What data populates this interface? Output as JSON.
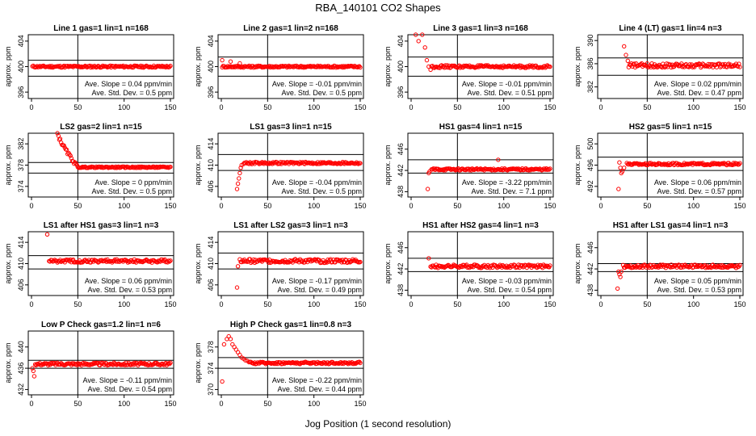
{
  "page": {
    "title": "RBA_140101  CO2 Shapes",
    "xlabel": "Jog Position (1 second resolution)"
  },
  "chart_data": [
    {
      "type": "scatter",
      "title": "Line 1 gas=1 lin=1 n=168",
      "ylabel": "approx. ppm",
      "xlim": [
        0,
        150
      ],
      "ylim": [
        395,
        405
      ],
      "yticks": [
        396,
        400,
        404
      ],
      "xticks": [
        0,
        50,
        100,
        150
      ],
      "hlines": [
        401,
        398.5
      ],
      "vline": 50,
      "annot_slope": "Ave. Slope = 0.04 ppm/min",
      "annot_sd": "Ave. Std. Dev. = 0.5 ppm",
      "shape": {
        "start": 1,
        "level": 400,
        "noise": 0.15,
        "early": []
      }
    },
    {
      "type": "scatter",
      "title": "Line 2 gas=1 lin=2 n=168",
      "ylabel": "approx. ppm",
      "xlim": [
        0,
        150
      ],
      "ylim": [
        395,
        405
      ],
      "yticks": [
        396,
        400,
        404
      ],
      "xticks": [
        0,
        50,
        100,
        150
      ],
      "hlines": [
        401.5,
        398.5
      ],
      "vline": 50,
      "annot_slope": "Ave. Slope = -0.01 ppm/min",
      "annot_sd": "Ave. Std. Dev. = 0.5 ppm",
      "shape": {
        "start": 1,
        "level": 400,
        "noise": 0.15,
        "early": [
          [
            1,
            401
          ],
          [
            10,
            400.8
          ],
          [
            20,
            400.5
          ]
        ]
      }
    },
    {
      "type": "scatter",
      "title": "Line 3 gas=1 lin=3 n=168",
      "ylabel": "approx. ppm",
      "xlim": [
        0,
        150
      ],
      "ylim": [
        395,
        405
      ],
      "yticks": [
        396,
        400,
        404
      ],
      "xticks": [
        0,
        50,
        100,
        150
      ],
      "hlines": [
        401.5,
        398.5
      ],
      "vline": 50,
      "annot_slope": "Ave. Slope = -0.01 ppm/min",
      "annot_sd": "Ave. Std. Dev. = 0.51 ppm",
      "shape": {
        "start": 22,
        "level": 400,
        "noise": 0.2,
        "early": [
          [
            5,
            405
          ],
          [
            8,
            404
          ],
          [
            12,
            405
          ],
          [
            15,
            403
          ],
          [
            17,
            401
          ],
          [
            19,
            400
          ],
          [
            21,
            399.5
          ]
        ]
      }
    },
    {
      "type": "scatter",
      "title": "Line 4 (LT) gas=1 lin=4 n=3",
      "ylabel": "approx. ppm",
      "xlim": [
        0,
        150
      ],
      "ylim": [
        380,
        391
      ],
      "yticks": [
        382,
        386,
        390
      ],
      "xticks": [
        0,
        50,
        100,
        150
      ],
      "hlines": [
        387,
        384
      ],
      "vline": 50,
      "annot_slope": "Ave. Slope = 0.02 ppm/min",
      "annot_sd": "Ave. Std. Dev. = 0.47 ppm",
      "shape": {
        "start": 30,
        "level": 385.7,
        "noise": 0.35,
        "early": [
          [
            25,
            389
          ],
          [
            27,
            387.5
          ],
          [
            29,
            386.5
          ]
        ]
      }
    },
    {
      "type": "scatter",
      "title": "LS2 gas=2 lin=1 n=15",
      "ylabel": "approx. ppm",
      "xlim": [
        0,
        150
      ],
      "ylim": [
        372,
        384
      ],
      "yticks": [
        374,
        378,
        382
      ],
      "xticks": [
        0,
        50,
        100,
        150
      ],
      "hlines": [
        378.5,
        376.5
      ],
      "vline": 50,
      "annot_slope": "Ave. Slope = 0 ppm/min",
      "annot_sd": "Ave. Std. Dev. = 0.5 ppm",
      "shape": {
        "start": 50,
        "level": 377.6,
        "noise": 0.12,
        "decay": [
          28,
          384,
          50,
          377.6
        ]
      }
    },
    {
      "type": "scatter",
      "title": "LS1 gas=3 lin=1 n=15",
      "ylabel": "approx. ppm",
      "xlim": [
        0,
        150
      ],
      "ylim": [
        404,
        416
      ],
      "yticks": [
        406,
        410,
        414
      ],
      "xticks": [
        0,
        50,
        100,
        150
      ],
      "hlines": [
        412,
        409
      ],
      "vline": 50,
      "annot_slope": "Ave. Slope = -0.04 ppm/min",
      "annot_sd": "Ave. Std. Dev. = 0.5 ppm",
      "shape": {
        "start": 24,
        "level": 410.4,
        "noise": 0.2,
        "early": [
          [
            17,
            405.5
          ],
          [
            18,
            406.5
          ],
          [
            19,
            407.5
          ],
          [
            20,
            408.5
          ],
          [
            21,
            409.5
          ],
          [
            22,
            410
          ]
        ]
      }
    },
    {
      "type": "scatter",
      "title": "HS1 gas=4 lin=1 n=15",
      "ylabel": "approx. ppm",
      "xlim": [
        0,
        150
      ],
      "ylim": [
        437,
        449
      ],
      "yticks": [
        438,
        442,
        446
      ],
      "xticks": [
        0,
        50,
        100,
        150
      ],
      "hlines": [
        444,
        441.5
      ],
      "vline": 50,
      "annot_slope": "Ave. Slope = -3.22 ppm/min",
      "annot_sd": "Ave. Std. Dev. = 7.1 ppm",
      "shape": {
        "start": 22,
        "level": 442.2,
        "noise": 0.18,
        "early": [
          [
            18,
            438.5
          ],
          [
            19,
            441.5
          ],
          [
            20,
            441.8
          ],
          [
            94,
            444
          ]
        ]
      }
    },
    {
      "type": "scatter",
      "title": "HS2 gas=5 lin=1 n=15",
      "ylabel": "approx. ppm",
      "xlim": [
        0,
        150
      ],
      "ylim": [
        490,
        502
      ],
      "yticks": [
        492,
        496,
        500
      ],
      "xticks": [
        0,
        50,
        100,
        150
      ],
      "hlines": [
        497.5,
        495
      ],
      "vline": 50,
      "annot_slope": "Ave. Slope = 0.06 ppm/min",
      "annot_sd": "Ave. Std. Dev. = 0.57 ppm",
      "shape": {
        "start": 28,
        "level": 496.2,
        "noise": 0.2,
        "early": [
          [
            19,
            491.5
          ],
          [
            20,
            496.5
          ],
          [
            21,
            495.5
          ],
          [
            22,
            494.5
          ],
          [
            23,
            494.8
          ],
          [
            25,
            495.5
          ]
        ]
      }
    },
    {
      "type": "scatter",
      "title": "LS1 after HS1 gas=3 lin=1 n=3",
      "ylabel": "approx. ppm",
      "xlim": [
        0,
        150
      ],
      "ylim": [
        404,
        416
      ],
      "yticks": [
        406,
        410,
        414
      ],
      "xticks": [
        0,
        50,
        100,
        150
      ],
      "hlines": [
        411.5,
        409
      ],
      "vline": 50,
      "annot_slope": "Ave. Slope = 0.06 ppm/min",
      "annot_sd": "Ave. Std. Dev. = 0.53 ppm",
      "shape": {
        "start": 19,
        "level": 410.5,
        "noise": 0.3,
        "early": [
          [
            17,
            415.5
          ]
        ]
      }
    },
    {
      "type": "scatter",
      "title": "LS1 after LS2 gas=3 lin=1 n=3",
      "ylabel": "approx. ppm",
      "xlim": [
        0,
        150
      ],
      "ylim": [
        404,
        416
      ],
      "yticks": [
        406,
        410,
        414
      ],
      "xticks": [
        0,
        50,
        100,
        150
      ],
      "hlines": [
        412,
        409
      ],
      "vline": 50,
      "annot_slope": "Ave. Slope = -0.17 ppm/min",
      "annot_sd": "Ave. Std. Dev. = 0.49 ppm",
      "shape": {
        "start": 20,
        "level": 410.5,
        "noise": 0.35,
        "early": [
          [
            17,
            405.5
          ],
          [
            18,
            409.5
          ]
        ]
      }
    },
    {
      "type": "scatter",
      "title": "HS1 after HS2 gas=4 lin=1 n=3",
      "ylabel": "approx. ppm",
      "xlim": [
        0,
        150
      ],
      "ylim": [
        437,
        449
      ],
      "yticks": [
        438,
        442,
        446
      ],
      "xticks": [
        0,
        50,
        100,
        150
      ],
      "hlines": [
        444,
        441.5
      ],
      "vline": 50,
      "annot_slope": "Ave. Slope = -0.03 ppm/min",
      "annot_sd": "Ave. Std. Dev. = 0.54 ppm",
      "shape": {
        "start": 21,
        "level": 442.5,
        "noise": 0.3,
        "early": [
          [
            19,
            444
          ]
        ]
      }
    },
    {
      "type": "scatter",
      "title": "HS1 after LS1 gas=4 lin=1 n=3",
      "ylabel": "approx. ppm",
      "xlim": [
        0,
        150
      ],
      "ylim": [
        437,
        449
      ],
      "yticks": [
        438,
        442,
        446
      ],
      "xticks": [
        0,
        50,
        100,
        150
      ],
      "hlines": [
        443,
        441.5
      ],
      "vline": 50,
      "annot_slope": "Ave. Slope = 0.05 ppm/min",
      "annot_sd": "Ave. Std. Dev. = 0.53 ppm",
      "shape": {
        "start": 24,
        "level": 442.5,
        "noise": 0.3,
        "early": [
          [
            18,
            438.3
          ],
          [
            19,
            441.5
          ],
          [
            20,
            441
          ],
          [
            21,
            440.5
          ],
          [
            22,
            441.5
          ]
        ]
      }
    },
    {
      "type": "scatter",
      "title": "Low P Check gas=1.2 lin=1 n=6",
      "ylabel": "approx. ppm",
      "xlim": [
        0,
        150
      ],
      "ylim": [
        431,
        443
      ],
      "yticks": [
        432,
        436,
        440
      ],
      "xticks": [
        0,
        50,
        100,
        150
      ],
      "hlines": [
        437.5,
        436
      ],
      "vline": 50,
      "annot_slope": "Ave. Slope = -0.11 ppm/min",
      "annot_sd": "Ave. Std. Dev. = 0.54 ppm",
      "shape": {
        "start": 4,
        "level": 436.8,
        "noise": 0.25,
        "early": [
          [
            1,
            436
          ],
          [
            2,
            435.5
          ],
          [
            3,
            434.5
          ]
        ]
      }
    },
    {
      "type": "scatter",
      "title": "High P Check gas=1 lin=0.8 n=3",
      "ylabel": "approx. ppm",
      "xlim": [
        0,
        150
      ],
      "ylim": [
        369,
        381
      ],
      "yticks": [
        370,
        374,
        378
      ],
      "xticks": [
        0,
        50,
        100,
        150
      ],
      "hlines": [
        376,
        374
      ],
      "vline": 50,
      "annot_slope": "Ave. Slope = -0.22 ppm/min",
      "annot_sd": "Ave. Std. Dev. = 0.44 ppm",
      "shape": {
        "start": 30,
        "level": 375,
        "noise": 0.2,
        "early": [
          [
            1,
            371.5
          ],
          [
            3,
            378.5
          ],
          [
            6,
            379.5
          ],
          [
            8,
            380
          ],
          [
            10,
            379.5
          ],
          [
            12,
            378.5
          ],
          [
            14,
            378
          ],
          [
            16,
            377.5
          ],
          [
            18,
            377
          ],
          [
            20,
            376.5
          ],
          [
            22,
            376
          ],
          [
            24,
            375.8
          ],
          [
            26,
            375.5
          ],
          [
            28,
            375.4
          ]
        ]
      }
    }
  ],
  "colors": {
    "points": "#ff0000",
    "axes": "#000000"
  }
}
